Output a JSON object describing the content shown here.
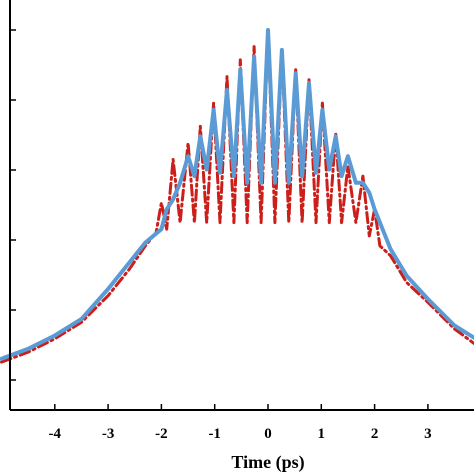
{
  "chart_data": {
    "type": "line",
    "title": "",
    "xlabel": "Time (ps)",
    "ylabel": "",
    "xlim": [
      -5,
      4
    ],
    "ylim": [
      0,
      1.1
    ],
    "grid": false,
    "x_ticks": [
      -4,
      -3,
      -2,
      -1,
      0,
      1,
      2,
      3
    ],
    "x_tick_labels": [
      "-4",
      "-3",
      "-2",
      "-1",
      "0",
      "1",
      "2",
      "3"
    ],
    "series": [
      {
        "color": "#cc1f1a",
        "style": "dash-dot",
        "x": [
          -5.0,
          -4.5,
          -4.0,
          -3.5,
          -3.0,
          -2.6,
          -2.3,
          -2.1,
          -2.0,
          -1.9,
          -1.78,
          -1.65,
          -1.5,
          -1.38,
          -1.27,
          -1.15,
          -1.02,
          -0.9,
          -0.77,
          -0.64,
          -0.52,
          -0.39,
          -0.26,
          -0.13,
          0.0,
          0.13,
          0.26,
          0.39,
          0.52,
          0.64,
          0.77,
          0.9,
          1.02,
          1.15,
          1.27,
          1.38,
          1.5,
          1.65,
          1.78,
          1.9,
          2.0,
          2.1,
          2.3,
          2.6,
          3.0,
          3.5,
          4.0,
          4.5,
          5.0
        ],
        "y": [
          0.06,
          0.09,
          0.13,
          0.18,
          0.26,
          0.34,
          0.41,
          0.45,
          0.54,
          0.46,
          0.67,
          0.48,
          0.72,
          0.48,
          0.77,
          0.48,
          0.84,
          0.48,
          0.92,
          0.48,
          0.97,
          0.48,
          1.01,
          0.48,
          1.06,
          0.48,
          1.0,
          0.48,
          0.94,
          0.48,
          0.91,
          0.48,
          0.84,
          0.48,
          0.75,
          0.48,
          0.65,
          0.48,
          0.62,
          0.44,
          0.52,
          0.41,
          0.38,
          0.3,
          0.24,
          0.16,
          0.1,
          0.07,
          0.05
        ]
      },
      {
        "color": "#5b9bd5",
        "style": "solid",
        "x": [
          -5.0,
          -4.5,
          -4.0,
          -3.5,
          -3.0,
          -2.6,
          -2.3,
          -2.0,
          -1.9,
          -1.78,
          -1.65,
          -1.5,
          -1.38,
          -1.27,
          -1.15,
          -1.02,
          -0.9,
          -0.77,
          -0.64,
          -0.52,
          -0.39,
          -0.26,
          -0.13,
          0.0,
          0.13,
          0.26,
          0.39,
          0.52,
          0.64,
          0.77,
          0.9,
          1.02,
          1.15,
          1.27,
          1.38,
          1.5,
          1.65,
          1.78,
          1.9,
          2.0,
          2.3,
          2.6,
          3.0,
          3.5,
          4.0,
          4.5,
          5.0
        ],
        "y": [
          0.07,
          0.1,
          0.14,
          0.19,
          0.28,
          0.36,
          0.42,
          0.46,
          0.52,
          0.55,
          0.6,
          0.68,
          0.62,
          0.74,
          0.64,
          0.82,
          0.63,
          0.88,
          0.62,
          0.94,
          0.6,
          0.98,
          0.6,
          1.06,
          0.6,
          1.0,
          0.6,
          0.93,
          0.62,
          0.9,
          0.63,
          0.82,
          0.64,
          0.74,
          0.62,
          0.68,
          0.6,
          0.6,
          0.57,
          0.52,
          0.4,
          0.32,
          0.25,
          0.17,
          0.12,
          0.08,
          0.06
        ]
      }
    ]
  }
}
